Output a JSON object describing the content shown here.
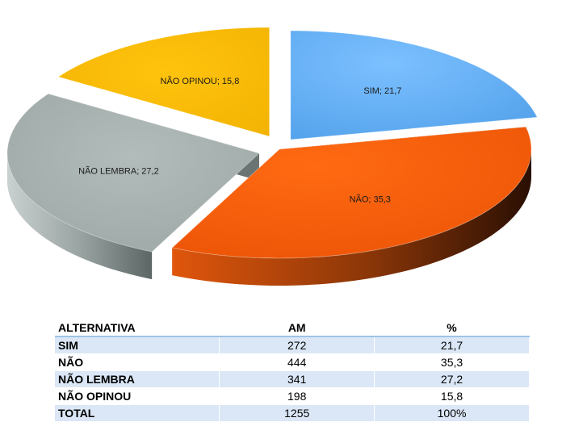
{
  "chart_data": {
    "type": "pie",
    "style": "3d-exploded",
    "slices": [
      {
        "name": "SIM",
        "value": 21.7,
        "label": "SIM; 21,7",
        "color": "#5aaaf4",
        "side": "#0d2f5e"
      },
      {
        "name": "NÃO",
        "value": 35.3,
        "label": "NÃO; 35,3",
        "color": "#f35c0a",
        "side": "#7a2c06"
      },
      {
        "name": "NÃO LEMBRA",
        "value": 27.2,
        "label": "NÃO LEMBRA; 27,2",
        "color": "#a7b2b0",
        "side": "#6a7473"
      },
      {
        "name": "NÃO OPINOU",
        "value": 15.8,
        "label": "NÃO OPINOU; 15,8",
        "color": "#f7b800",
        "side": "#7e6410"
      }
    ]
  },
  "table": {
    "headers": [
      "ALTERNATIVA",
      "AM",
      "%"
    ],
    "rows": [
      [
        "SIM",
        "272",
        "21,7"
      ],
      [
        "NÃO",
        "444",
        "35,3"
      ],
      [
        "NÃO LEMBRA",
        "341",
        "27,2"
      ],
      [
        "NÃO OPINOU",
        "198",
        "15,8"
      ]
    ],
    "total": [
      "TOTAL",
      "1255",
      "100%"
    ]
  }
}
